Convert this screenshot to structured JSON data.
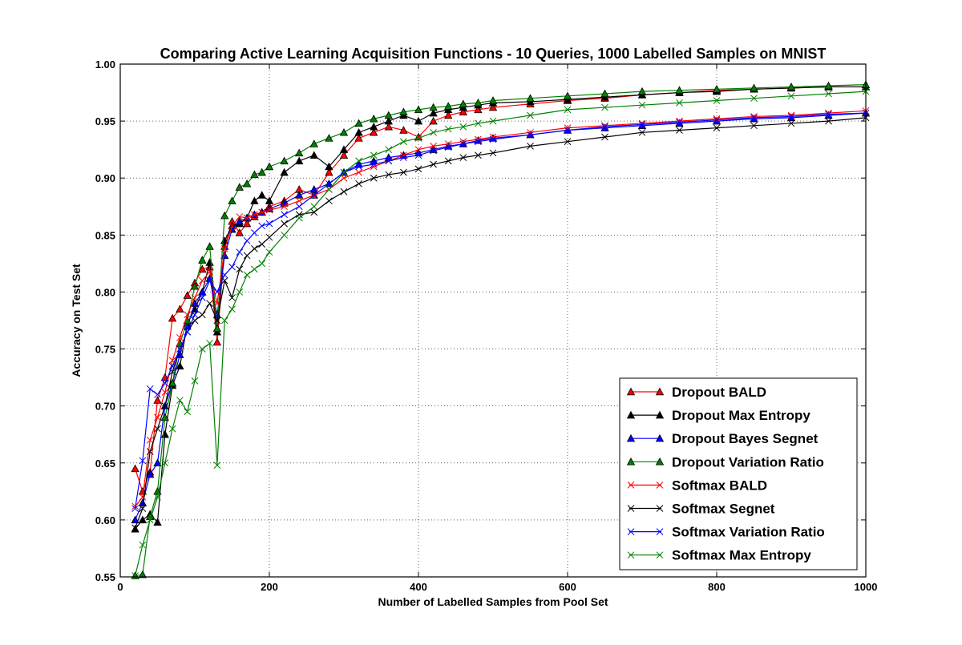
{
  "chart_data": {
    "type": "line",
    "title": "Comparing Active Learning Acquisition Functions - 10 Queries, 1000 Labelled Samples on MNIST",
    "xlabel": "Number of Labelled Samples from Pool Set",
    "ylabel": "Accuracy on Test Set",
    "xlim": [
      0,
      1000
    ],
    "ylim": [
      0.55,
      1.0
    ],
    "xticks": [
      0,
      200,
      400,
      600,
      800,
      1000
    ],
    "xtick_labels": [
      "0",
      "200",
      "400",
      "600",
      "800",
      "1000"
    ],
    "yticks": [
      0.55,
      0.6,
      0.65,
      0.7,
      0.75,
      0.8,
      0.85,
      0.9,
      0.95,
      1.0
    ],
    "ytick_labels": [
      "0.55",
      "0.60",
      "0.65",
      "0.70",
      "0.75",
      "0.80",
      "0.85",
      "0.90",
      "0.95",
      "1.00"
    ],
    "grid": true,
    "legend_position": "lower-right",
    "x": [
      20,
      30,
      40,
      50,
      60,
      70,
      80,
      90,
      100,
      110,
      120,
      130,
      140,
      150,
      160,
      170,
      180,
      190,
      200,
      220,
      240,
      260,
      280,
      300,
      320,
      340,
      360,
      380,
      400,
      420,
      440,
      460,
      480,
      500,
      550,
      600,
      650,
      700,
      750,
      800,
      850,
      900,
      950,
      1000
    ],
    "series": [
      {
        "name": "Dropout BALD",
        "color": "#ff0000",
        "marker": "triangle",
        "values": [
          0.645,
          0.625,
          0.642,
          0.705,
          0.725,
          0.777,
          0.785,
          0.797,
          0.808,
          0.82,
          0.822,
          0.756,
          0.84,
          0.862,
          0.852,
          0.86,
          0.866,
          0.87,
          0.875,
          0.88,
          0.89,
          0.885,
          0.905,
          0.92,
          0.935,
          0.94,
          0.945,
          0.942,
          0.936,
          0.95,
          0.955,
          0.958,
          0.96,
          0.962,
          0.965,
          0.968,
          0.97,
          0.973,
          0.975,
          0.977,
          0.978,
          0.979,
          0.98,
          0.98
        ]
      },
      {
        "name": "Dropout Max Entropy",
        "color": "#000000",
        "marker": "triangle",
        "values": [
          0.592,
          0.6,
          0.605,
          0.598,
          0.675,
          0.718,
          0.735,
          0.772,
          0.785,
          0.8,
          0.826,
          0.765,
          0.845,
          0.858,
          0.86,
          0.865,
          0.88,
          0.885,
          0.88,
          0.905,
          0.915,
          0.92,
          0.91,
          0.925,
          0.94,
          0.945,
          0.95,
          0.955,
          0.95,
          0.957,
          0.96,
          0.962,
          0.964,
          0.966,
          0.967,
          0.969,
          0.971,
          0.973,
          0.975,
          0.976,
          0.978,
          0.979,
          0.98,
          0.98
        ]
      },
      {
        "name": "Dropout Bayes Segnet",
        "color": "#0000ff",
        "marker": "triangle",
        "values": [
          0.6,
          0.615,
          0.64,
          0.65,
          0.7,
          0.72,
          0.745,
          0.77,
          0.79,
          0.8,
          0.812,
          0.78,
          0.832,
          0.855,
          0.862,
          0.865,
          0.868,
          0.87,
          0.873,
          0.878,
          0.885,
          0.89,
          0.895,
          0.905,
          0.912,
          0.915,
          0.918,
          0.92,
          0.922,
          0.925,
          0.928,
          0.93,
          0.933,
          0.935,
          0.938,
          0.942,
          0.944,
          0.946,
          0.948,
          0.95,
          0.952,
          0.953,
          0.955,
          0.957
        ]
      },
      {
        "name": "Dropout Variation Ratio",
        "color": "#008000",
        "marker": "triangle",
        "values": [
          0.551,
          0.552,
          0.603,
          0.625,
          0.69,
          0.72,
          0.755,
          0.775,
          0.805,
          0.828,
          0.84,
          0.768,
          0.867,
          0.88,
          0.892,
          0.895,
          0.903,
          0.905,
          0.91,
          0.915,
          0.922,
          0.93,
          0.935,
          0.94,
          0.948,
          0.952,
          0.955,
          0.958,
          0.96,
          0.962,
          0.963,
          0.965,
          0.966,
          0.968,
          0.97,
          0.972,
          0.974,
          0.976,
          0.977,
          0.978,
          0.979,
          0.98,
          0.981,
          0.982
        ]
      },
      {
        "name": "Softmax BALD",
        "color": "#ff0000",
        "marker": "x",
        "values": [
          0.612,
          0.62,
          0.67,
          0.69,
          0.712,
          0.74,
          0.76,
          0.78,
          0.795,
          0.81,
          0.818,
          0.79,
          0.838,
          0.858,
          0.866,
          0.865,
          0.868,
          0.87,
          0.872,
          0.875,
          0.88,
          0.885,
          0.89,
          0.9,
          0.905,
          0.91,
          0.915,
          0.92,
          0.925,
          0.928,
          0.93,
          0.932,
          0.934,
          0.936,
          0.94,
          0.944,
          0.946,
          0.948,
          0.95,
          0.952,
          0.954,
          0.955,
          0.957,
          0.959
        ]
      },
      {
        "name": "Softmax Segnet",
        "color": "#000000",
        "marker": "x",
        "values": [
          0.593,
          0.61,
          0.66,
          0.68,
          0.7,
          0.73,
          0.75,
          0.765,
          0.775,
          0.78,
          0.79,
          0.775,
          0.81,
          0.795,
          0.82,
          0.832,
          0.838,
          0.842,
          0.848,
          0.86,
          0.868,
          0.87,
          0.88,
          0.888,
          0.895,
          0.9,
          0.903,
          0.905,
          0.908,
          0.912,
          0.915,
          0.918,
          0.92,
          0.922,
          0.928,
          0.932,
          0.936,
          0.94,
          0.942,
          0.944,
          0.946,
          0.948,
          0.95,
          0.953
        ]
      },
      {
        "name": "Softmax Variation Ratio",
        "color": "#0000ff",
        "marker": "x",
        "values": [
          0.61,
          0.652,
          0.715,
          0.71,
          0.72,
          0.735,
          0.75,
          0.765,
          0.78,
          0.795,
          0.81,
          0.8,
          0.815,
          0.822,
          0.835,
          0.845,
          0.852,
          0.858,
          0.86,
          0.868,
          0.875,
          0.885,
          0.895,
          0.905,
          0.91,
          0.912,
          0.915,
          0.918,
          0.92,
          0.924,
          0.927,
          0.93,
          0.932,
          0.934,
          0.938,
          0.942,
          0.945,
          0.947,
          0.949,
          0.951,
          0.953,
          0.954,
          0.956,
          0.957
        ]
      },
      {
        "name": "Softmax Max Entropy",
        "color": "#008000",
        "marker": "x",
        "values": [
          0.551,
          0.578,
          0.6,
          0.62,
          0.65,
          0.68,
          0.705,
          0.695,
          0.722,
          0.75,
          0.755,
          0.648,
          0.775,
          0.785,
          0.8,
          0.815,
          0.82,
          0.825,
          0.835,
          0.85,
          0.865,
          0.875,
          0.89,
          0.905,
          0.915,
          0.92,
          0.925,
          0.932,
          0.935,
          0.94,
          0.943,
          0.945,
          0.948,
          0.95,
          0.955,
          0.96,
          0.962,
          0.964,
          0.966,
          0.968,
          0.97,
          0.972,
          0.974,
          0.976
        ]
      }
    ]
  }
}
